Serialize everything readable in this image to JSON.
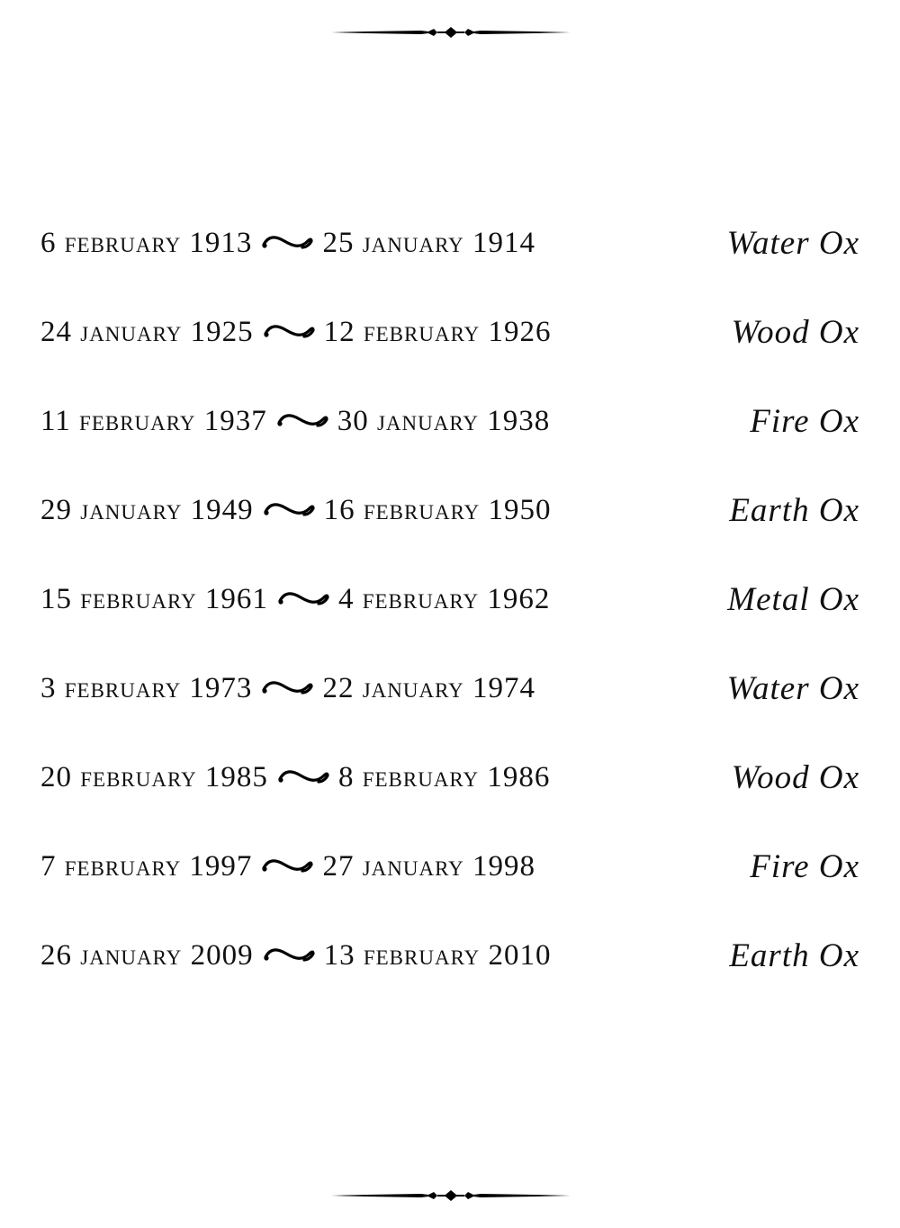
{
  "ornament_icon": "horizontal-rule-flourish",
  "rows": [
    {
      "start": "6 february 1913",
      "end": "25 january 1914",
      "sign": "Water Ox"
    },
    {
      "start": "24 january 1925",
      "end": "12 february 1926",
      "sign": "Wood Ox"
    },
    {
      "start": "11 february 1937",
      "end": "30 january 1938",
      "sign": "Fire Ox"
    },
    {
      "start": "29 january 1949",
      "end": "16 february 1950",
      "sign": "Earth Ox"
    },
    {
      "start": "15 february 1961",
      "end": "4 february 1962",
      "sign": "Metal Ox"
    },
    {
      "start": "3 february 1973",
      "end": "22 january 1974",
      "sign": "Water Ox"
    },
    {
      "start": "20 february 1985",
      "end": "8 february 1986",
      "sign": "Wood Ox"
    },
    {
      "start": "7 february 1997",
      "end": "27 january 1998",
      "sign": "Fire Ox"
    },
    {
      "start": "26 january 2009",
      "end": "13 february 2010",
      "sign": "Earth Ox"
    }
  ]
}
